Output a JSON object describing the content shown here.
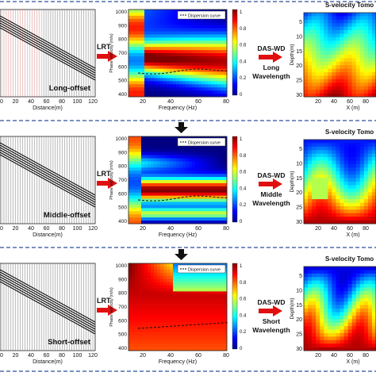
{
  "rows": [
    {
      "offset_label": "Long-offset",
      "method": "LRT",
      "das_label": "DAS-WD",
      "wave_line1": "Long",
      "wave_line2": "Wavelength",
      "panel_title": "S-velocity Tomo",
      "legend": "Dispersion curve",
      "x_ticks_seis": [
        "0",
        "20",
        "40",
        "60",
        "80",
        "100",
        "120"
      ],
      "x_label_seis": "Distance(m)",
      "freq_ticks": [
        "20",
        "40",
        "60",
        "80"
      ],
      "freq_label": "Frequency (Hz)",
      "vel_ticks": [
        "1000",
        "900",
        "800",
        "700",
        "600",
        "500",
        "400"
      ],
      "vel_label": "Phase velocity (m/s)",
      "cbar_ticks": [
        "1",
        "0.8",
        "0.6",
        "0.4",
        "0.2",
        "0"
      ],
      "tomo_y_ticks": [
        "5",
        "10",
        "15",
        "20",
        "25",
        "30"
      ],
      "tomo_y_label": "Depth(m)",
      "tomo_x_ticks": [
        "20",
        "40",
        "60",
        "80"
      ],
      "tomo_x_label": "X (m)"
    },
    {
      "offset_label": "Middle-offset",
      "method": "LRT",
      "das_label": "DAS-WD",
      "wave_line1": "Middle",
      "wave_line2": "Wavelength",
      "panel_title": "S-velocity Tomo",
      "legend": "Dispersion curve",
      "x_ticks_seis": [
        "0",
        "20",
        "40",
        "60",
        "80",
        "100",
        "120"
      ],
      "x_label_seis": "Distance(m)",
      "freq_ticks": [
        "20",
        "40",
        "60",
        "80"
      ],
      "freq_label": "Frequency (Hz)",
      "vel_ticks": [
        "1000",
        "900",
        "800",
        "700",
        "600",
        "500",
        "400"
      ],
      "vel_label": "Phase velocity (m/s)",
      "cbar_ticks": [
        "1",
        "0.8",
        "0.6",
        "0.4",
        "0.2",
        "0"
      ],
      "tomo_y_ticks": [
        "5",
        "10",
        "15",
        "20",
        "25",
        "30"
      ],
      "tomo_y_label": "Depth(m)",
      "tomo_x_ticks": [
        "20",
        "40",
        "60",
        "80"
      ],
      "tomo_x_label": "X (m)"
    },
    {
      "offset_label": "Short-offset",
      "method": "LRT",
      "das_label": "DAS-WD",
      "wave_line1": "Short",
      "wave_line2": "Wavelength",
      "panel_title": "S-velocity Tomo",
      "legend": "Dispersion curve",
      "x_ticks_seis": [
        "0",
        "20",
        "40",
        "60",
        "80",
        "100",
        "120"
      ],
      "x_label_seis": "Distance(m)",
      "freq_ticks": [
        "20",
        "40",
        "60",
        "80"
      ],
      "freq_label": "Frequency (Hz)",
      "vel_ticks": [
        "1000",
        "900",
        "800",
        "700",
        "600",
        "500",
        "400"
      ],
      "vel_label": "Phase velocity (m/s)",
      "cbar_ticks": [
        "1",
        "0.8",
        "0.6",
        "0.4",
        "0.2",
        "0"
      ],
      "tomo_y_ticks": [
        "5",
        "10",
        "15",
        "20",
        "25",
        "30"
      ],
      "tomo_y_label": "Depth(m)",
      "tomo_x_ticks": [
        "20",
        "40",
        "60",
        "80"
      ],
      "tomo_x_label": "X (m)"
    }
  ]
}
